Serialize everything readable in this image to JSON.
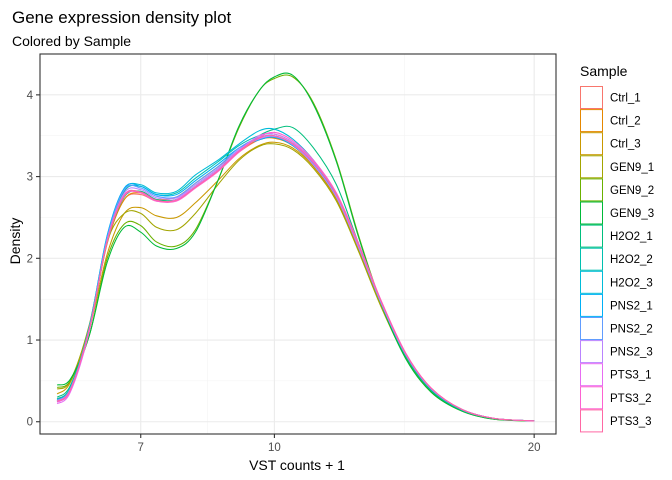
{
  "chart_data": {
    "type": "line",
    "title": "Gene expression density plot",
    "subtitle": "Colored by Sample",
    "xlabel": "VST counts + 1",
    "ylabel": "Density",
    "x_scale": "log10",
    "xlim": [
      5.35,
      21.2
    ],
    "ylim": [
      -0.15,
      4.5
    ],
    "x_ticks": [
      {
        "value": 7,
        "label": "7"
      },
      {
        "value": 10,
        "label": "10"
      },
      {
        "value": 20,
        "label": "20"
      }
    ],
    "y_ticks": [
      {
        "value": 0,
        "label": "0"
      },
      {
        "value": 1,
        "label": "1"
      },
      {
        "value": 2,
        "label": "2"
      },
      {
        "value": 3,
        "label": "3"
      },
      {
        "value": 4,
        "label": "4"
      }
    ],
    "x": [
      5.6,
      5.8,
      6.1,
      6.4,
      6.7,
      7.0,
      7.3,
      7.7,
      8.1,
      8.6,
      9.1,
      9.6,
      10.0,
      10.5,
      11.1,
      11.8,
      12.5,
      13.3,
      14.2,
      15.2,
      16.5,
      18.0,
      20.0
    ],
    "legend_title": "Sample",
    "legend_position": "right",
    "grid": true,
    "series": [
      {
        "name": "Ctrl_1",
        "color": "#F8766D",
        "values": [
          0.28,
          0.42,
          1.15,
          2.2,
          2.72,
          2.78,
          2.7,
          2.72,
          2.88,
          3.08,
          3.3,
          3.45,
          3.48,
          3.4,
          3.15,
          2.75,
          2.15,
          1.45,
          0.82,
          0.4,
          0.15,
          0.04,
          0.01
        ]
      },
      {
        "name": "Ctrl_2",
        "color": "#E58700",
        "values": [
          0.26,
          0.4,
          1.12,
          2.18,
          2.72,
          2.8,
          2.72,
          2.75,
          2.92,
          3.12,
          3.32,
          3.45,
          3.47,
          3.38,
          3.13,
          2.74,
          2.14,
          1.44,
          0.81,
          0.39,
          0.14,
          0.04,
          0.01
        ]
      },
      {
        "name": "Ctrl_3",
        "color": "#C99800",
        "values": [
          0.34,
          0.48,
          1.12,
          2.05,
          2.55,
          2.62,
          2.52,
          2.5,
          2.68,
          2.95,
          3.22,
          3.38,
          3.42,
          3.35,
          3.12,
          2.72,
          2.12,
          1.42,
          0.8,
          0.38,
          0.14,
          0.04,
          0.01
        ]
      },
      {
        "name": "GEN9_1",
        "color": "#A3A500",
        "values": [
          0.4,
          0.5,
          1.18,
          2.2,
          2.55,
          2.55,
          2.38,
          2.35,
          2.55,
          2.9,
          3.2,
          3.37,
          3.4,
          3.33,
          3.1,
          2.7,
          2.1,
          1.4,
          0.78,
          0.37,
          0.14,
          0.04,
          0.01
        ]
      },
      {
        "name": "GEN9_2",
        "color": "#6BB100",
        "values": [
          0.42,
          0.5,
          1.05,
          2.0,
          2.42,
          2.4,
          2.2,
          2.15,
          2.35,
          2.95,
          3.6,
          4.05,
          4.2,
          4.22,
          3.9,
          3.2,
          2.3,
          1.45,
          0.78,
          0.36,
          0.13,
          0.03,
          0.01
        ]
      },
      {
        "name": "GEN9_3",
        "color": "#00BA38",
        "values": [
          0.45,
          0.52,
          1.05,
          1.95,
          2.38,
          2.32,
          2.15,
          2.12,
          2.32,
          2.95,
          3.62,
          4.05,
          4.22,
          4.24,
          3.88,
          3.18,
          2.28,
          1.44,
          0.77,
          0.36,
          0.13,
          0.03,
          0.01
        ]
      },
      {
        "name": "H2O2_1",
        "color": "#00BF7D",
        "values": [
          0.3,
          0.44,
          1.12,
          2.2,
          2.75,
          2.82,
          2.72,
          2.72,
          2.88,
          3.08,
          3.32,
          3.5,
          3.58,
          3.6,
          3.35,
          2.9,
          2.2,
          1.45,
          0.8,
          0.38,
          0.14,
          0.04,
          0.01
        ]
      },
      {
        "name": "H2O2_2",
        "color": "#00C0AF",
        "values": [
          0.28,
          0.42,
          1.15,
          2.25,
          2.82,
          2.88,
          2.78,
          2.8,
          2.98,
          3.18,
          3.38,
          3.5,
          3.52,
          3.42,
          3.18,
          2.76,
          2.15,
          1.44,
          0.81,
          0.39,
          0.14,
          0.04,
          0.01
        ]
      },
      {
        "name": "H2O2_3",
        "color": "#00BCD8",
        "values": [
          0.27,
          0.41,
          1.16,
          2.27,
          2.85,
          2.9,
          2.8,
          2.82,
          3.02,
          3.2,
          3.4,
          3.56,
          3.58,
          3.46,
          3.2,
          2.78,
          2.16,
          1.45,
          0.82,
          0.4,
          0.15,
          0.04,
          0.01
        ]
      },
      {
        "name": "PNS2_1",
        "color": "#00B0F6",
        "values": [
          0.25,
          0.4,
          1.15,
          2.28,
          2.86,
          2.88,
          2.78,
          2.78,
          2.95,
          3.15,
          3.35,
          3.45,
          3.48,
          3.38,
          3.15,
          2.75,
          2.15,
          1.45,
          0.82,
          0.4,
          0.15,
          0.04,
          0.01
        ]
      },
      {
        "name": "PNS2_2",
        "color": "#619CFF",
        "values": [
          0.24,
          0.38,
          1.12,
          2.25,
          2.84,
          2.86,
          2.76,
          2.75,
          2.92,
          3.12,
          3.35,
          3.48,
          3.5,
          3.4,
          3.15,
          2.75,
          2.15,
          1.45,
          0.82,
          0.4,
          0.15,
          0.04,
          0.01
        ]
      },
      {
        "name": "PNS2_3",
        "color": "#B983FF",
        "values": [
          0.26,
          0.4,
          1.13,
          2.22,
          2.8,
          2.84,
          2.74,
          2.74,
          2.9,
          3.1,
          3.33,
          3.46,
          3.49,
          3.39,
          3.14,
          2.75,
          2.15,
          1.45,
          0.82,
          0.4,
          0.15,
          0.04,
          0.01
        ]
      },
      {
        "name": "PTS3_1",
        "color": "#E76BF3",
        "values": [
          0.22,
          0.36,
          1.1,
          2.22,
          2.78,
          2.8,
          2.7,
          2.72,
          2.88,
          3.08,
          3.32,
          3.5,
          3.52,
          3.42,
          3.18,
          2.78,
          2.18,
          1.47,
          0.83,
          0.41,
          0.15,
          0.04,
          0.01
        ]
      },
      {
        "name": "PTS3_2",
        "color": "#FD61D1",
        "values": [
          0.24,
          0.38,
          1.12,
          2.2,
          2.76,
          2.8,
          2.7,
          2.7,
          2.86,
          3.06,
          3.3,
          3.48,
          3.54,
          3.44,
          3.2,
          2.8,
          2.2,
          1.48,
          0.84,
          0.41,
          0.15,
          0.04,
          0.01
        ]
      },
      {
        "name": "PTS3_3",
        "color": "#FF67A4",
        "values": [
          0.25,
          0.39,
          1.13,
          2.21,
          2.77,
          2.81,
          2.71,
          2.71,
          2.87,
          3.07,
          3.31,
          3.47,
          3.5,
          3.4,
          3.17,
          2.78,
          2.18,
          1.47,
          0.83,
          0.41,
          0.15,
          0.04,
          0.01
        ]
      }
    ]
  }
}
